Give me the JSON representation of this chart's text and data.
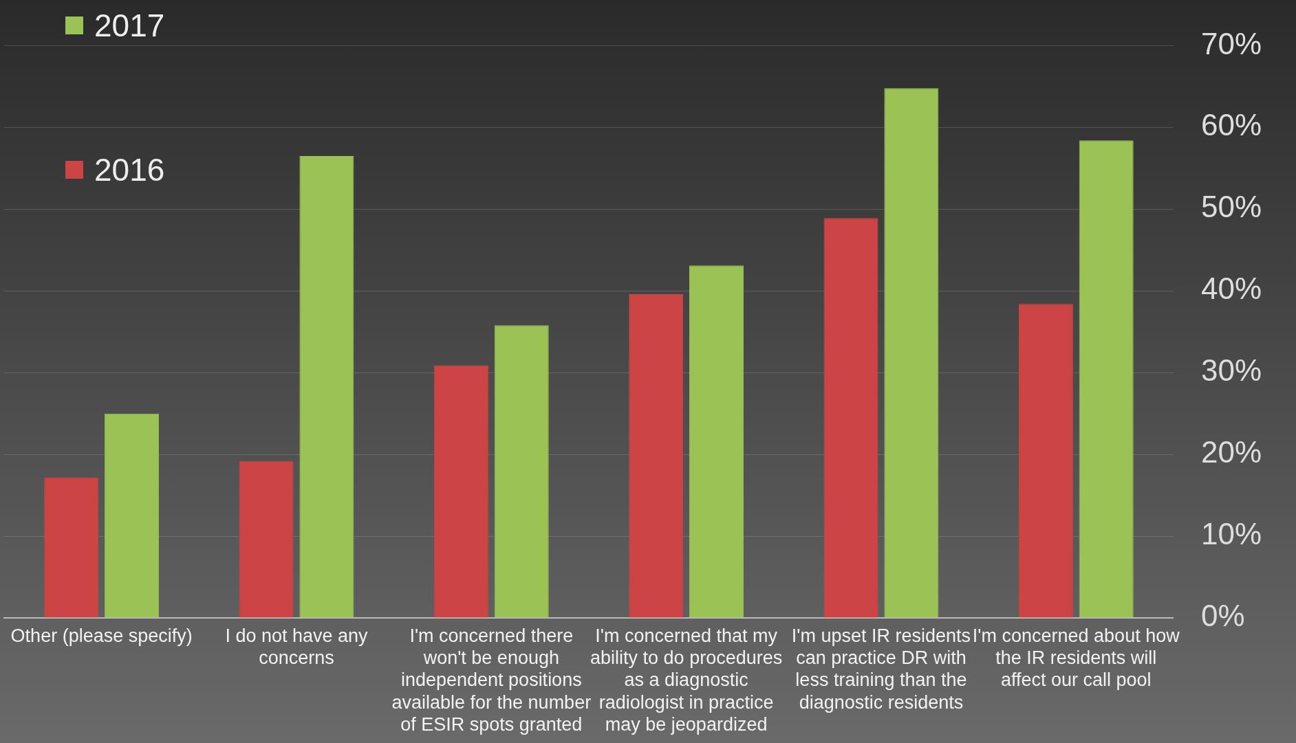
{
  "chart_data": {
    "type": "bar",
    "categories": [
      "Other (please specify)",
      "I do not have any concerns",
      "I'm concerned there won't be enough independent positions available for the number of ESIR spots granted",
      "I'm concerned that my ability to do procedures as a diagnostic radiologist in practice may be jeopardized",
      "I'm upset IR residents can practice DR with less training than the diagnostic residents",
      "I'm concerned about how the IR residents will affect our call pool"
    ],
    "series": [
      {
        "name": "2016",
        "color": "#cc4444",
        "values": [
          17.2,
          19.2,
          30.9,
          39.6,
          48.9,
          38.4
        ]
      },
      {
        "name": "2017",
        "color": "#9bc255",
        "values": [
          25.0,
          56.5,
          35.8,
          43.1,
          64.8,
          58.4
        ]
      }
    ],
    "ylim": [
      0,
      70
    ],
    "yticks": [
      {
        "value": 0,
        "label": "0%"
      },
      {
        "value": 10,
        "label": "10%"
      },
      {
        "value": 20,
        "label": "20%"
      },
      {
        "value": 30,
        "label": "30%"
      },
      {
        "value": 40,
        "label": "40%"
      },
      {
        "value": 50,
        "label": "50%"
      },
      {
        "value": 60,
        "label": "60%"
      },
      {
        "value": 70,
        "label": "70%"
      }
    ],
    "grid": "y",
    "legend": "top left"
  }
}
